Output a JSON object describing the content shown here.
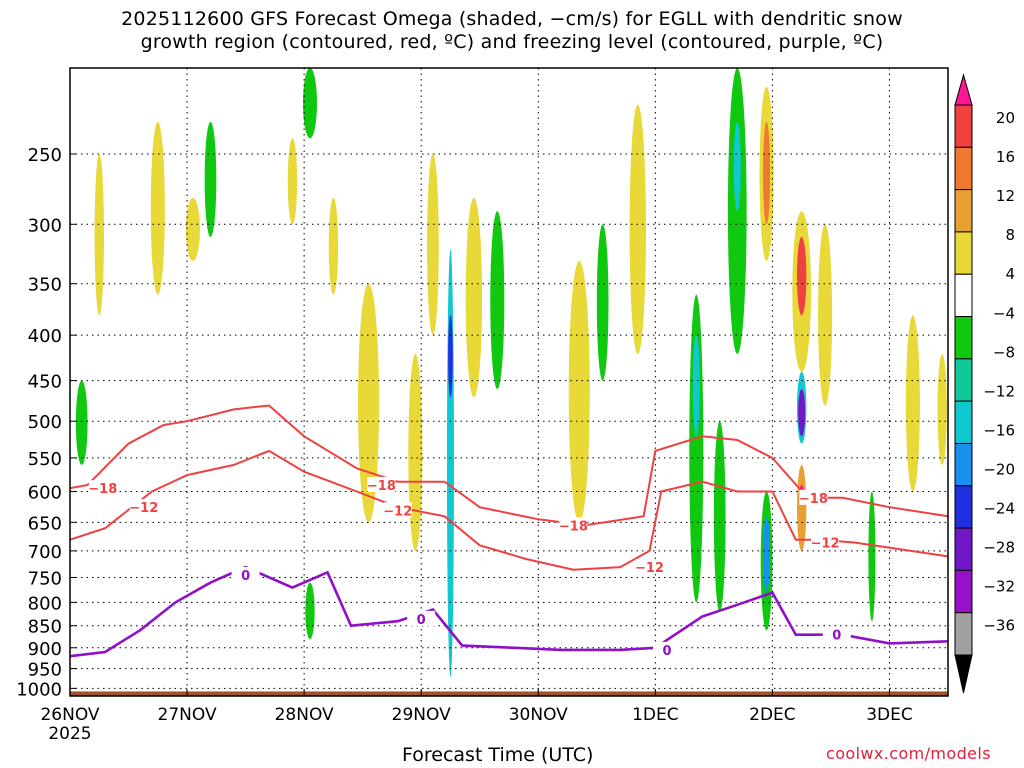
{
  "title": {
    "line1": "2025112600 GFS Forecast Omega (shaded, −cm/s) for EGLL with dendritic snow",
    "line2": "growth region (contoured, red, ºC) and freezing level (contoured, purple, ºC)"
  },
  "x_axis_title": "Forecast Time (UTC)",
  "credit": "coolwx.com/models",
  "chart_data": {
    "type": "heatmap",
    "title": "2025112600 GFS Forecast Omega (shaded, −cm/s) for EGLL with dendritic snow growth region (contoured, red, ºC) and freezing level (contoured, purple, ºC)",
    "xlabel": "Forecast Time (UTC)",
    "ylabel": "",
    "x_ticks": [
      "26NOV",
      "27NOV",
      "28NOV",
      "29NOV",
      "30NOV",
      "1DEC",
      "2DEC",
      "3DEC"
    ],
    "x_year_label": "2025",
    "x_range_days": [
      0,
      7.5
    ],
    "y_ticks": [
      250,
      300,
      350,
      400,
      450,
      500,
      550,
      600,
      650,
      700,
      750,
      800,
      850,
      900,
      950,
      1000
    ],
    "y_range_hpa": [
      1020,
      200
    ],
    "y_scale": "log-pressure",
    "grid": true,
    "colorbar": {
      "labels": [
        "20",
        "16",
        "12",
        "8",
        "4",
        "−4",
        "−8",
        "−12",
        "−16",
        "−20",
        "−24",
        "−28",
        "−32",
        "−36"
      ],
      "colors": [
        "#ff1493",
        "#f04040",
        "#f07830",
        "#e8a030",
        "#e8d838",
        "#ffffff",
        "#10c810",
        "#10c898",
        "#10c8d0",
        "#1890f0",
        "#2030e0",
        "#7018c8",
        "#9810c8",
        "#a0a0a0",
        "#000000"
      ]
    },
    "omega_regions": [
      {
        "t": 0.1,
        "p1": 450,
        "p2": 560,
        "dt": 0.05,
        "color": "#10c810"
      },
      {
        "t": 0.25,
        "p1": 250,
        "p2": 380,
        "dt": 0.04,
        "color": "#e8d838"
      },
      {
        "t": 0.75,
        "p1": 230,
        "p2": 360,
        "dt": 0.06,
        "color": "#e8d838"
      },
      {
        "t": 1.05,
        "p1": 280,
        "p2": 330,
        "dt": 0.06,
        "color": "#e8d838"
      },
      {
        "t": 1.2,
        "p1": 230,
        "p2": 310,
        "dt": 0.05,
        "color": "#10c810"
      },
      {
        "t": 1.9,
        "p1": 240,
        "p2": 300,
        "dt": 0.04,
        "color": "#e8d838"
      },
      {
        "t": 2.05,
        "p1": 200,
        "p2": 240,
        "dt": 0.06,
        "color": "#10c810"
      },
      {
        "t": 2.05,
        "p1": 760,
        "p2": 880,
        "dt": 0.04,
        "color": "#10c810"
      },
      {
        "t": 2.25,
        "p1": 280,
        "p2": 360,
        "dt": 0.04,
        "color": "#e8d838"
      },
      {
        "t": 2.55,
        "p1": 350,
        "p2": 650,
        "dt": 0.09,
        "color": "#e8d838"
      },
      {
        "t": 2.95,
        "p1": 420,
        "p2": 700,
        "dt": 0.06,
        "color": "#e8d838"
      },
      {
        "t": 3.1,
        "p1": 250,
        "p2": 400,
        "dt": 0.05,
        "color": "#e8d838"
      },
      {
        "t": 3.25,
        "p1": 320,
        "p2": 970,
        "dt": 0.03,
        "color": "#10c8d0"
      },
      {
        "t": 3.25,
        "p1": 380,
        "p2": 470,
        "dt": 0.02,
        "color": "#2030e0"
      },
      {
        "t": 3.45,
        "p1": 280,
        "p2": 470,
        "dt": 0.07,
        "color": "#e8d838"
      },
      {
        "t": 3.65,
        "p1": 290,
        "p2": 460,
        "dt": 0.06,
        "color": "#10c810"
      },
      {
        "t": 4.35,
        "p1": 330,
        "p2": 650,
        "dt": 0.09,
        "color": "#e8d838"
      },
      {
        "t": 4.55,
        "p1": 300,
        "p2": 450,
        "dt": 0.05,
        "color": "#10c810"
      },
      {
        "t": 4.85,
        "p1": 220,
        "p2": 420,
        "dt": 0.07,
        "color": "#e8d838"
      },
      {
        "t": 5.35,
        "p1": 360,
        "p2": 800,
        "dt": 0.06,
        "color": "#10c810"
      },
      {
        "t": 5.35,
        "p1": 400,
        "p2": 520,
        "dt": 0.03,
        "color": "#10c8d0"
      },
      {
        "t": 5.55,
        "p1": 500,
        "p2": 820,
        "dt": 0.05,
        "color": "#10c810"
      },
      {
        "t": 5.7,
        "p1": 200,
        "p2": 420,
        "dt": 0.08,
        "color": "#10c810"
      },
      {
        "t": 5.7,
        "p1": 230,
        "p2": 290,
        "dt": 0.03,
        "color": "#10c8d0"
      },
      {
        "t": 5.95,
        "p1": 600,
        "p2": 860,
        "dt": 0.05,
        "color": "#10c810"
      },
      {
        "t": 5.95,
        "p1": 640,
        "p2": 780,
        "dt": 0.03,
        "color": "#1890f0"
      },
      {
        "t": 5.95,
        "p1": 210,
        "p2": 330,
        "dt": 0.06,
        "color": "#e8d838"
      },
      {
        "t": 5.95,
        "p1": 230,
        "p2": 300,
        "dt": 0.03,
        "color": "#f07830"
      },
      {
        "t": 6.25,
        "p1": 290,
        "p2": 440,
        "dt": 0.08,
        "color": "#e8d838"
      },
      {
        "t": 6.25,
        "p1": 310,
        "p2": 380,
        "dt": 0.04,
        "color": "#f04040"
      },
      {
        "t": 6.25,
        "p1": 440,
        "p2": 530,
        "dt": 0.04,
        "color": "#10c8d0"
      },
      {
        "t": 6.25,
        "p1": 460,
        "p2": 520,
        "dt": 0.03,
        "color": "#7018c8"
      },
      {
        "t": 6.25,
        "p1": 560,
        "p2": 700,
        "dt": 0.04,
        "color": "#e8a030"
      },
      {
        "t": 6.25,
        "p1": 590,
        "p2": 620,
        "dt": 0.02,
        "color": "#ff1493"
      },
      {
        "t": 6.45,
        "p1": 300,
        "p2": 480,
        "dt": 0.06,
        "color": "#e8d838"
      },
      {
        "t": 6.85,
        "p1": 600,
        "p2": 840,
        "dt": 0.03,
        "color": "#10c810"
      },
      {
        "t": 7.2,
        "p1": 380,
        "p2": 600,
        "dt": 0.06,
        "color": "#e8d838"
      },
      {
        "t": 7.45,
        "p1": 420,
        "p2": 560,
        "dt": 0.04,
        "color": "#e8d838"
      }
    ],
    "series": [
      {
        "name": "-18",
        "label_points": [
          [
            0.28,
            595
          ],
          [
            2.66,
            590
          ],
          [
            4.3,
            655
          ],
          [
            6.35,
            610
          ]
        ],
        "x_days": [
          0,
          0.15,
          0.5,
          0.8,
          1.0,
          1.4,
          1.7,
          2.0,
          2.45,
          2.8,
          3.2,
          3.5,
          4.0,
          4.4,
          4.9,
          5.0,
          5.4,
          5.7,
          6.0,
          6.3,
          6.6,
          7.0,
          7.5
        ],
        "p_hpa": [
          595,
          590,
          530,
          505,
          500,
          485,
          480,
          520,
          565,
          585,
          585,
          625,
          645,
          655,
          640,
          540,
          520,
          525,
          550,
          610,
          610,
          625,
          640
        ]
      },
      {
        "name": "-12",
        "label_points": [
          [
            0.63,
            625
          ],
          [
            2.8,
            630
          ],
          [
            4.95,
            730
          ],
          [
            6.45,
            685
          ]
        ],
        "x_days": [
          0,
          0.3,
          0.7,
          1.0,
          1.4,
          1.7,
          2.0,
          2.45,
          2.8,
          3.2,
          3.5,
          3.9,
          4.3,
          4.7,
          4.95,
          5.05,
          5.4,
          5.7,
          6.0,
          6.2,
          6.4,
          6.7,
          7.5
        ],
        "p_hpa": [
          680,
          660,
          600,
          575,
          560,
          540,
          570,
          600,
          625,
          640,
          690,
          715,
          735,
          730,
          700,
          600,
          585,
          600,
          600,
          680,
          680,
          685,
          710
        ]
      },
      {
        "name": "0",
        "label_points": [
          [
            1.5,
            745
          ],
          [
            3.0,
            835
          ],
          [
            5.1,
            905
          ],
          [
            6.55,
            870
          ]
        ],
        "x_days": [
          0,
          0.3,
          0.6,
          0.9,
          1.2,
          1.5,
          1.9,
          2.2,
          2.4,
          2.8,
          3.1,
          3.35,
          3.8,
          4.2,
          4.7,
          5.0,
          5.4,
          5.7,
          6.0,
          6.2,
          6.6,
          7.0,
          7.5
        ],
        "p_hpa": [
          920,
          910,
          860,
          800,
          760,
          730,
          770,
          740,
          850,
          840,
          815,
          895,
          900,
          905,
          905,
          900,
          830,
          805,
          780,
          870,
          870,
          890,
          885
        ]
      }
    ]
  }
}
